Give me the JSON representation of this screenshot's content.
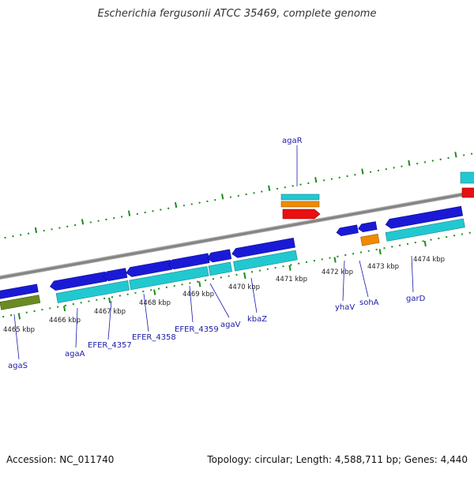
{
  "title": "Escherichia fergusonii ATCC 35469, complete genome",
  "footer": {
    "accession": "Accession: NC_011740",
    "summary": "Topology: circular; Length: 4,588,711 bp; Genes: 4,440"
  },
  "colors": {
    "cds": "#1a1ad6",
    "gene": "#22c8d0",
    "orange": "#f08a00",
    "red": "#e81010",
    "olive": "#6a8a22",
    "ruler": "#1e8c1e",
    "label": "#1a1aaa"
  },
  "ticks": [
    {
      "label": "4465 kbp"
    },
    {
      "label": "4466 kbp"
    },
    {
      "label": "4467 kbp"
    },
    {
      "label": "4468 kbp"
    },
    {
      "label": "4469 kbp"
    },
    {
      "label": "4470 kbp"
    },
    {
      "label": "4471 kbp"
    },
    {
      "label": "4472 kbp"
    },
    {
      "label": "4473 kbp"
    },
    {
      "label": "4474 kbp"
    }
  ],
  "genes": [
    {
      "label": "agaS"
    },
    {
      "label": "agaA"
    },
    {
      "label": "EFER_4357"
    },
    {
      "label": "EFER_4358"
    },
    {
      "label": "EFER_4359"
    },
    {
      "label": "agaV"
    },
    {
      "label": "kbaZ"
    },
    {
      "label": "agaR"
    },
    {
      "label": "yhaV"
    },
    {
      "label": "sohA"
    },
    {
      "label": "garD"
    }
  ]
}
